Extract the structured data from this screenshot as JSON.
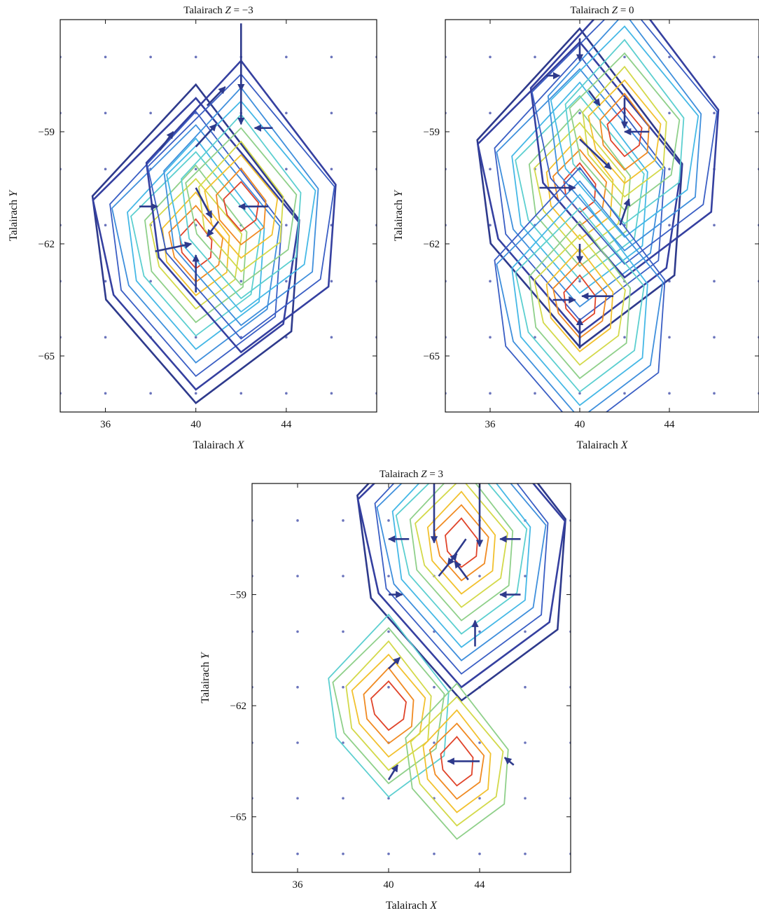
{
  "figure": {
    "panels": [
      {
        "title_prefix": "Talairach ",
        "title_var": "Z",
        "title_eq": " = −3",
        "xlabel_prefix": "Talairach ",
        "xlabel_var": "X",
        "ylabel_prefix": "Talairach ",
        "ylabel_var": "Y",
        "xticks": [
          "36",
          "40",
          "44"
        ],
        "yticks": [
          "−59",
          "−62",
          "−65"
        ]
      },
      {
        "title_prefix": "Talairach ",
        "title_var": "Z",
        "title_eq": " = 0",
        "xlabel_prefix": "Talairach ",
        "xlabel_var": "X",
        "ylabel_prefix": "Talairach ",
        "ylabel_var": "Y",
        "xticks": [
          "36",
          "40",
          "44"
        ],
        "yticks": [
          "−59",
          "−62",
          "−65"
        ]
      },
      {
        "title_prefix": "Talairach ",
        "title_var": "Z",
        "title_eq": " = 3",
        "xlabel_prefix": "Talairach ",
        "xlabel_var": "X",
        "ylabel_prefix": "Talairach ",
        "ylabel_var": "Y",
        "xticks": [
          "36",
          "40",
          "44"
        ],
        "yticks": [
          "−59",
          "−62",
          "−65"
        ]
      }
    ]
  },
  "chart_data": [
    {
      "type": "contour",
      "z_slice": -3,
      "xlabel": "Talairach X",
      "ylabel": "Talairach Y",
      "xlim": [
        34,
        48
      ],
      "ylim": [
        -66.5,
        -56
      ],
      "xticks": [
        36,
        40,
        44
      ],
      "yticks": [
        -59,
        -62,
        -65
      ],
      "contour_colors": [
        "#2e3a8c",
        "#3540a0",
        "#3a5ec4",
        "#3f8fdc",
        "#45b8e6",
        "#5ccfd0",
        "#8fd08a",
        "#d3d94a",
        "#f2c12e",
        "#f08a22",
        "#e0442a"
      ],
      "peaks": [
        {
          "x": 40,
          "y": -62,
          "levels": 11
        },
        {
          "x": 42,
          "y": -61,
          "levels": 10
        }
      ],
      "quiver": [
        {
          "x": 42,
          "y": -56.1,
          "u": 0,
          "v": -1.8
        },
        {
          "x": 42,
          "y": -57.5,
          "u": 0,
          "v": -1.3
        },
        {
          "x": 40.5,
          "y": -58.3,
          "u": 0.8,
          "v": 0.5
        },
        {
          "x": 40,
          "y": -59.4,
          "u": 0.9,
          "v": 0.6
        },
        {
          "x": 38.4,
          "y": -59.5,
          "u": 0.6,
          "v": 0.5
        },
        {
          "x": 43.2,
          "y": -61,
          "u": -1.3,
          "v": 0
        },
        {
          "x": 40,
          "y": -60.5,
          "u": 0.7,
          "v": -0.8
        },
        {
          "x": 41,
          "y": -61.4,
          "u": -0.5,
          "v": -0.4
        },
        {
          "x": 38.2,
          "y": -62.2,
          "u": 1.6,
          "v": 0.2
        },
        {
          "x": 40,
          "y": -63.3,
          "u": 0,
          "v": 1.0
        },
        {
          "x": 37.5,
          "y": -61,
          "u": 0.8,
          "v": 0
        },
        {
          "x": 43.4,
          "y": -58.9,
          "u": -0.8,
          "v": 0
        }
      ]
    },
    {
      "type": "contour",
      "z_slice": 0,
      "xlabel": "Talairach X",
      "ylabel": "Talairach Y",
      "xlim": [
        34,
        48
      ],
      "ylim": [
        -66.5,
        -56
      ],
      "xticks": [
        36,
        40,
        44
      ],
      "yticks": [
        -59,
        -62,
        -65
      ],
      "contour_colors": [
        "#2e3a8c",
        "#3540a0",
        "#3a5ec4",
        "#3f8fdc",
        "#45b8e6",
        "#5ccfd0",
        "#8fd08a",
        "#d3d94a",
        "#f2c12e",
        "#f08a22",
        "#e0442a"
      ],
      "peaks": [
        {
          "x": 40,
          "y": -60.5,
          "levels": 11
        },
        {
          "x": 42,
          "y": -59,
          "levels": 10
        },
        {
          "x": 40,
          "y": -63.5,
          "levels": 9
        }
      ],
      "quiver": [
        {
          "x": 38.5,
          "y": -57.5,
          "u": 0.6,
          "v": 0
        },
        {
          "x": 40,
          "y": -56.5,
          "u": 0,
          "v": -0.6
        },
        {
          "x": 40.4,
          "y": -57.9,
          "u": 0.5,
          "v": -0.4
        },
        {
          "x": 43.1,
          "y": -59,
          "u": -1.1,
          "v": 0
        },
        {
          "x": 42,
          "y": -58.1,
          "u": 0,
          "v": -0.8
        },
        {
          "x": 38.2,
          "y": -60.5,
          "u": 1.6,
          "v": 0
        },
        {
          "x": 40,
          "y": -59.2,
          "u": 1.4,
          "v": -0.8
        },
        {
          "x": 41.8,
          "y": -61.5,
          "u": 0.4,
          "v": 0.7
        },
        {
          "x": 41.5,
          "y": -63.4,
          "u": -1.4,
          "v": 0
        },
        {
          "x": 38.8,
          "y": -63.5,
          "u": 1.0,
          "v": 0
        },
        {
          "x": 40,
          "y": -64.8,
          "u": 0,
          "v": 0.8
        },
        {
          "x": 40,
          "y": -62,
          "u": 0,
          "v": -0.5
        }
      ]
    },
    {
      "type": "contour",
      "z_slice": 3,
      "xlabel": "Talairach X",
      "ylabel": "Talairach Y",
      "xlim": [
        34,
        48
      ],
      "ylim": [
        -66.5,
        -56
      ],
      "xticks": [
        36,
        40,
        44
      ],
      "yticks": [
        -59,
        -62,
        -65
      ],
      "contour_colors": [
        "#2e3a8c",
        "#3540a0",
        "#3a5ec4",
        "#3f8fdc",
        "#45b8e6",
        "#5ccfd0",
        "#8fd08a",
        "#d3d94a",
        "#f2c12e",
        "#f08a22",
        "#e0442a"
      ],
      "peaks": [
        {
          "x": 43.2,
          "y": -57.6,
          "levels": 11
        },
        {
          "x": 40,
          "y": -62,
          "levels": 6
        },
        {
          "x": 43,
          "y": -63.5,
          "levels": 5
        }
      ],
      "quiver": [
        {
          "x": 42,
          "y": -56,
          "u": 0,
          "v": -1.6
        },
        {
          "x": 44,
          "y": -56,
          "u": 0,
          "v": -1.7
        },
        {
          "x": 42.2,
          "y": -58.5,
          "u": 0.8,
          "v": 0.6
        },
        {
          "x": 43.4,
          "y": -57.5,
          "u": -0.8,
          "v": -0.7
        },
        {
          "x": 43.5,
          "y": -58.6,
          "u": -0.6,
          "v": 0.5
        },
        {
          "x": 45.8,
          "y": -57.5,
          "u": -0.9,
          "v": 0
        },
        {
          "x": 45.8,
          "y": -59,
          "u": -0.9,
          "v": 0
        },
        {
          "x": 40.9,
          "y": -57.5,
          "u": -0.9,
          "v": 0
        },
        {
          "x": 40,
          "y": -59,
          "u": 0.6,
          "v": 0
        },
        {
          "x": 43.8,
          "y": -60.4,
          "u": 0,
          "v": 0.7
        },
        {
          "x": 40,
          "y": -61,
          "u": 0.5,
          "v": 0.3
        },
        {
          "x": 44,
          "y": -63.5,
          "u": -1.4,
          "v": 0
        },
        {
          "x": 40,
          "y": -64,
          "u": 0.4,
          "v": 0.4
        },
        {
          "x": 45.5,
          "y": -63.6,
          "u": -0.4,
          "v": 0.2
        }
      ]
    }
  ]
}
